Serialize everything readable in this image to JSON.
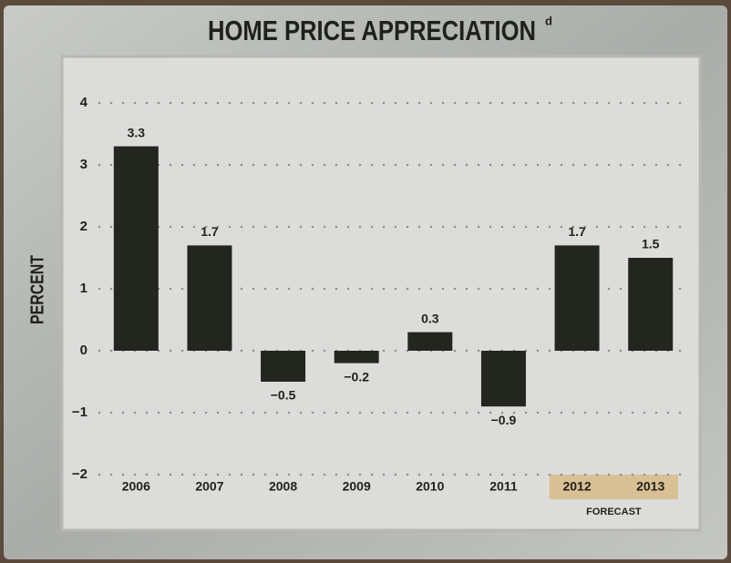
{
  "chart_data": {
    "type": "bar",
    "title": "HOME PRICE APPRECIATION",
    "title_note": "d",
    "y_label": "PERCENT",
    "categories": [
      "2006",
      "2007",
      "2008",
      "2009",
      "2010",
      "2011",
      "2012",
      "2013"
    ],
    "values": [
      3.3,
      1.7,
      -0.5,
      -0.2,
      0.3,
      -0.9,
      1.7,
      1.5
    ],
    "value_labels": [
      "3.3",
      "1.7",
      "−0.5",
      "−0.2",
      "0.3",
      "−0.9",
      "1.7",
      "1.5"
    ],
    "color": "#23261f",
    "ylim": [
      -2,
      4
    ],
    "yticks": [
      4,
      3,
      2,
      1,
      0,
      {
        "value": -1,
        "label": "−1"
      },
      {
        "value": -2,
        "label": "−2"
      }
    ],
    "grid": true,
    "highlight": {
      "categories": [
        "2012",
        "2013"
      ],
      "color": "#d9bf94",
      "label": "FORECAST"
    }
  }
}
